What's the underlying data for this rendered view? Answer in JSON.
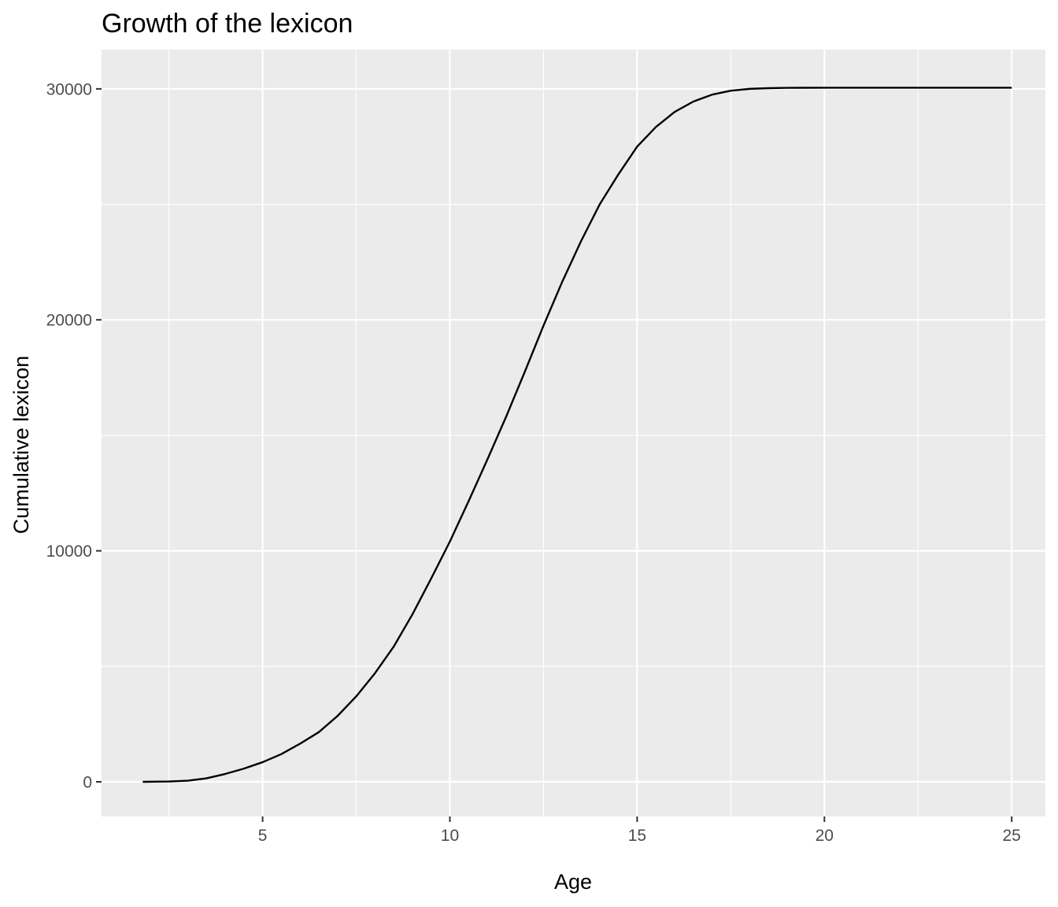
{
  "chart_data": {
    "type": "line",
    "title": "Growth of the lexicon",
    "xlabel": "Age",
    "ylabel": "Cumulative lexicon",
    "xlim": [
      0.7,
      25.9
    ],
    "ylim": [
      -1500,
      31700
    ],
    "x_ticks": [
      5,
      10,
      15,
      20,
      25
    ],
    "x_tick_labels": [
      "5",
      "10",
      "15",
      "20",
      "25"
    ],
    "x_minor_ticks": [
      2.5,
      7.5,
      12.5,
      17.5,
      22.5
    ],
    "y_ticks": [
      0,
      10000,
      20000,
      30000
    ],
    "y_tick_labels": [
      "0",
      "10000",
      "20000",
      "30000"
    ],
    "y_minor_ticks": [
      5000,
      15000,
      25000
    ],
    "grid": true,
    "background": "#ebebeb",
    "grid_color": "#ffffff",
    "line_color": "#000000",
    "series": [
      {
        "x": [
          1.8,
          2.5,
          3.0,
          3.5,
          4.0,
          4.5,
          5.0,
          5.5,
          6.0,
          6.5,
          7.0,
          7.5,
          8.0,
          8.5,
          9.0,
          9.5,
          10.0,
          10.5,
          11.0,
          11.5,
          12.0,
          12.5,
          13.0,
          13.5,
          14.0,
          14.5,
          15.0,
          15.5,
          16.0,
          16.5,
          17.0,
          17.5,
          18.0,
          18.5,
          19.0,
          20.0,
          21.0,
          22.0,
          23.0,
          24.0,
          25.0
        ],
        "y": [
          0,
          15,
          50,
          150,
          340,
          570,
          850,
          1200,
          1650,
          2150,
          2850,
          3700,
          4700,
          5850,
          7250,
          8800,
          10400,
          12150,
          13950,
          15800,
          17750,
          19750,
          21650,
          23400,
          25000,
          26300,
          27500,
          28350,
          29000,
          29450,
          29750,
          29920,
          30000,
          30030,
          30045,
          30050,
          30050,
          30050,
          30050,
          30050,
          30050
        ]
      }
    ]
  }
}
